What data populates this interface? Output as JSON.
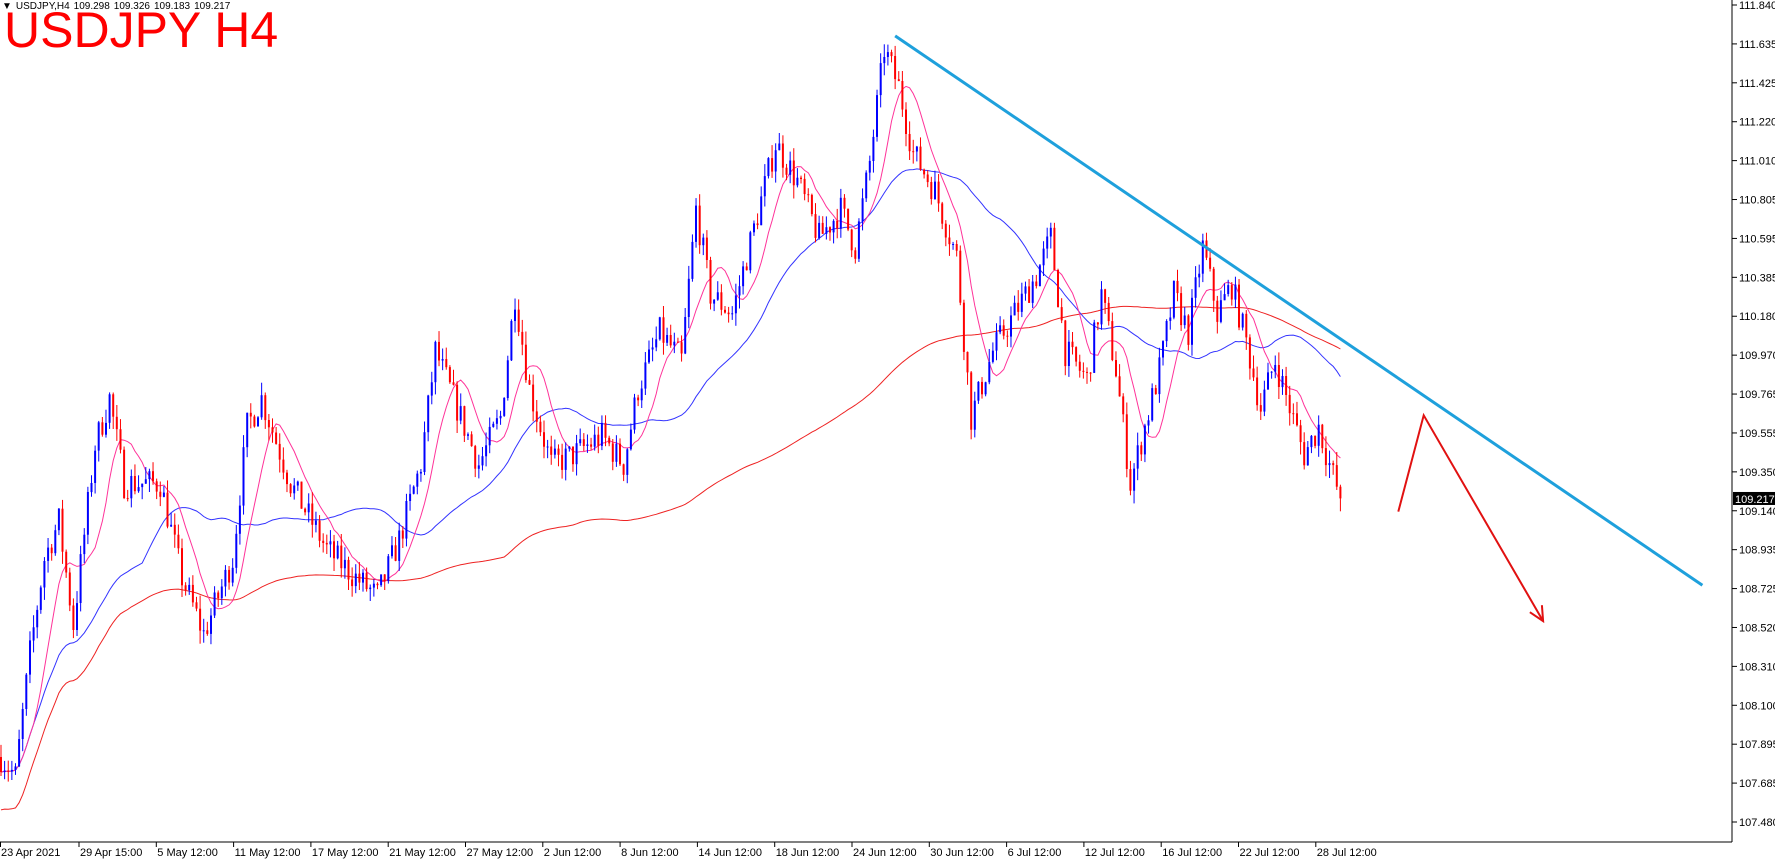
{
  "header": {
    "symbol_caption": "USDJPY,H4",
    "ohlc": [
      "109.298",
      "109.326",
      "109.183",
      "109.217"
    ],
    "title": "USDJPY H4"
  },
  "colors": {
    "bull": "#0000ff",
    "bear": "#ff0000",
    "ma_fast": "#ff3399",
    "ma_mid": "#3333ff",
    "ma_slow": "#ee2222",
    "trendline": "#1ea0dc",
    "arrow": "#e11111",
    "price_tag_bg": "#000000"
  },
  "chart_data": {
    "type": "candlestick",
    "timeframe": "H4",
    "ylim": [
      107.4,
      111.86
    ],
    "y_ticks": [
      "111.840",
      "111.635",
      "111.425",
      "111.220",
      "111.010",
      "110.805",
      "110.595",
      "110.385",
      "110.180",
      "109.970",
      "109.765",
      "109.555",
      "109.350",
      "109.140",
      "108.935",
      "108.725",
      "108.520",
      "108.310",
      "108.100",
      "107.895",
      "107.685",
      "107.480"
    ],
    "x_tick_labels": [
      "23 Apr 2021",
      "29 Apr 15:00",
      "5 May 12:00",
      "11 May 12:00",
      "17 May 12:00",
      "21 May 12:00",
      "27 May 12:00",
      "2 Jun 12:00",
      "8 Jun 12:00",
      "14 Jun 12:00",
      "18 Jun 12:00",
      "24 Jun 12:00",
      "30 Jun 12:00",
      "6 Jul 12:00",
      "12 Jul 12:00",
      "16 Jul 12:00",
      "22 Jul 12:00",
      "28 Jul 12:00"
    ],
    "last_price": "109.217",
    "anchors": [
      [
        0,
        107.85
      ],
      [
        4,
        107.75
      ],
      [
        8,
        108.4
      ],
      [
        12,
        108.9
      ],
      [
        16,
        109.1
      ],
      [
        20,
        108.55
      ],
      [
        26,
        109.5
      ],
      [
        30,
        109.75
      ],
      [
        34,
        109.3
      ],
      [
        44,
        109.3
      ],
      [
        50,
        108.8
      ],
      [
        56,
        108.5
      ],
      [
        64,
        108.9
      ],
      [
        68,
        109.6
      ],
      [
        72,
        109.75
      ],
      [
        80,
        109.3
      ],
      [
        90,
        108.95
      ],
      [
        98,
        108.8
      ],
      [
        104,
        108.7
      ],
      [
        110,
        109.0
      ],
      [
        116,
        109.4
      ],
      [
        120,
        110.0
      ],
      [
        126,
        109.7
      ],
      [
        132,
        109.4
      ],
      [
        138,
        109.65
      ],
      [
        142,
        110.3
      ],
      [
        146,
        109.8
      ],
      [
        152,
        109.4
      ],
      [
        158,
        109.45
      ],
      [
        166,
        109.55
      ],
      [
        172,
        109.4
      ],
      [
        176,
        109.8
      ],
      [
        182,
        110.1
      ],
      [
        188,
        109.95
      ],
      [
        192,
        110.75
      ],
      [
        196,
        110.3
      ],
      [
        202,
        110.2
      ],
      [
        206,
        110.5
      ],
      [
        210,
        110.8
      ],
      [
        214,
        111.1
      ],
      [
        220,
        110.9
      ],
      [
        226,
        110.6
      ],
      [
        232,
        110.75
      ],
      [
        236,
        110.55
      ],
      [
        240,
        111.0
      ],
      [
        244,
        111.6
      ],
      [
        248,
        111.4
      ],
      [
        252,
        111.05
      ],
      [
        258,
        110.85
      ],
      [
        264,
        110.5
      ],
      [
        268,
        109.65
      ],
      [
        274,
        110.0
      ],
      [
        280,
        110.2
      ],
      [
        286,
        110.4
      ],
      [
        290,
        110.6
      ],
      [
        294,
        110.0
      ],
      [
        300,
        109.85
      ],
      [
        304,
        110.3
      ],
      [
        308,
        109.9
      ],
      [
        312,
        109.3
      ],
      [
        316,
        109.6
      ],
      [
        320,
        109.9
      ],
      [
        324,
        110.3
      ],
      [
        328,
        110.1
      ],
      [
        332,
        110.55
      ],
      [
        336,
        110.2
      ],
      [
        340,
        110.35
      ],
      [
        344,
        110.05
      ],
      [
        348,
        109.7
      ],
      [
        352,
        109.95
      ],
      [
        356,
        109.7
      ],
      [
        360,
        109.45
      ],
      [
        364,
        109.6
      ],
      [
        367,
        109.4
      ],
      [
        370,
        109.22
      ]
    ],
    "overlays": {
      "trendline": {
        "from": {
          "bar": 247,
          "price": 111.67
        },
        "to": {
          "bar": 470,
          "price": 108.76
        }
      },
      "forecast_arrow": [
        {
          "bar": 386,
          "price": 109.15
        },
        {
          "bar": 393,
          "price": 109.66
        },
        {
          "bar": 426,
          "price": 108.57
        }
      ]
    }
  }
}
